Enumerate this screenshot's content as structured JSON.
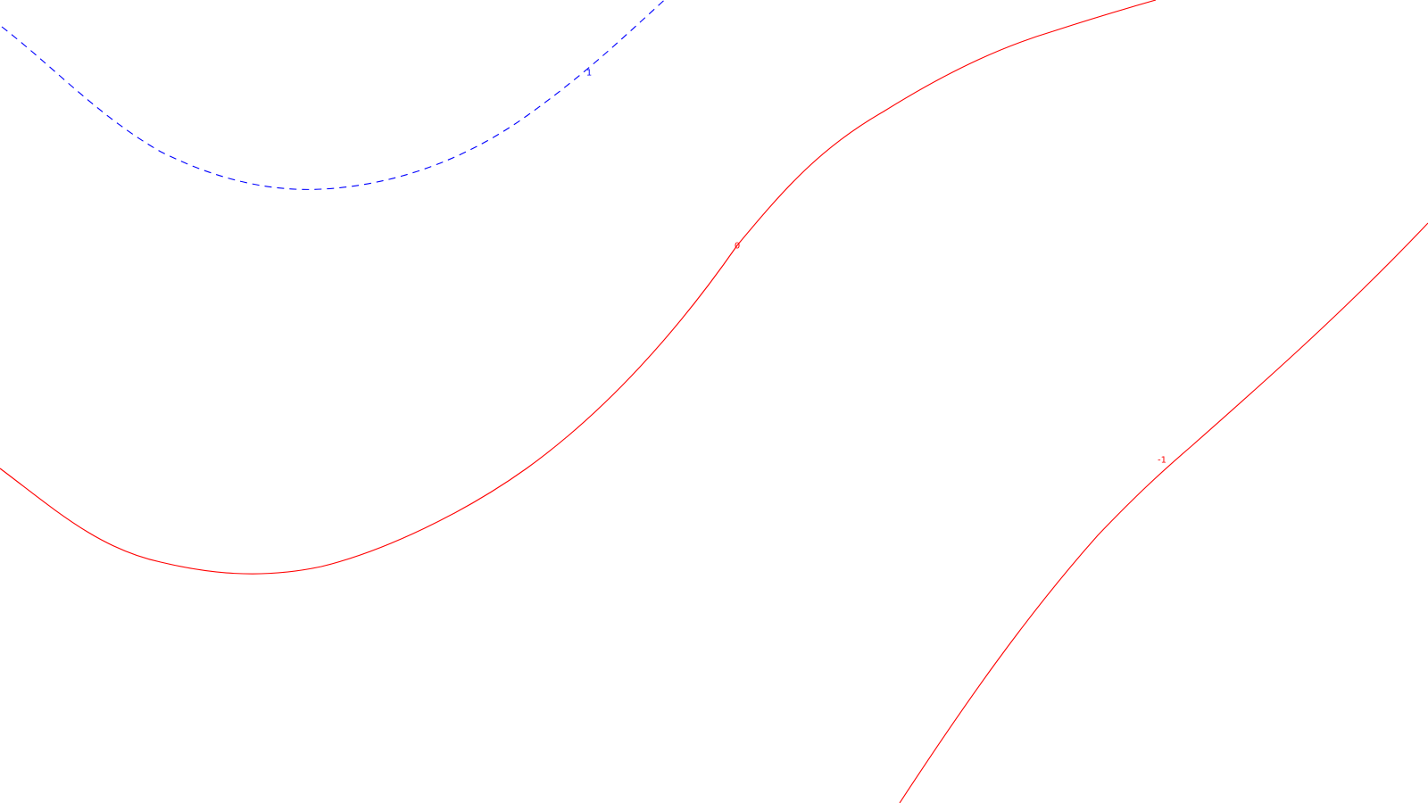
{
  "contours": [
    {
      "id": "contour-1",
      "level_label": "1",
      "color": "#0000ff",
      "style": "dashed"
    },
    {
      "id": "contour-0",
      "level_label": "0",
      "color": "#ff0000",
      "style": "solid"
    },
    {
      "id": "contour-neg1",
      "level_label": "-1",
      "color": "#ff0000",
      "style": "solid"
    }
  ]
}
